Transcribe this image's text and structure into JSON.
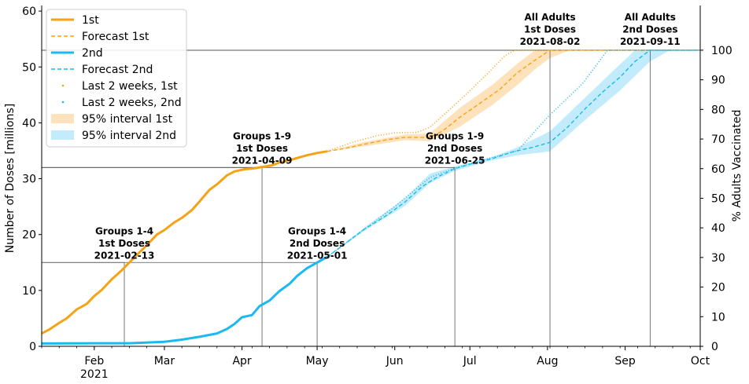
{
  "chart_data": {
    "type": "line",
    "ylabel": "Number of Doses [millions]",
    "ylabel_right": "% Adults Vaccinated",
    "ylim": [
      0,
      61
    ],
    "y_ticks": [
      0,
      10,
      20,
      30,
      40,
      50,
      60
    ],
    "y2_ticks": [
      0,
      10,
      20,
      30,
      40,
      50,
      60,
      70,
      80,
      90,
      100
    ],
    "adults_millions": 53,
    "x_range": [
      "2021-01-11",
      "2021-10-01"
    ],
    "x_ticks": [
      {
        "date": "2021-02-01",
        "label": "Feb",
        "sub": "2021"
      },
      {
        "date": "2021-03-01",
        "label": "Mar",
        "sub": ""
      },
      {
        "date": "2021-04-01",
        "label": "Apr",
        "sub": ""
      },
      {
        "date": "2021-05-01",
        "label": "May",
        "sub": ""
      },
      {
        "date": "2021-06-01",
        "label": "Jun",
        "sub": ""
      },
      {
        "date": "2021-07-01",
        "label": "Jul",
        "sub": ""
      },
      {
        "date": "2021-08-01",
        "label": "Aug",
        "sub": ""
      },
      {
        "date": "2021-09-01",
        "label": "Sep",
        "sub": ""
      },
      {
        "date": "2021-10-01",
        "label": "Oct",
        "sub": ""
      }
    ],
    "legend_position": "top-left",
    "legend": [
      {
        "label": "1st",
        "style": "solid",
        "color": "#f5a316"
      },
      {
        "label": "Forecast 1st",
        "style": "dashed",
        "color": "#f5a316"
      },
      {
        "label": "2nd",
        "style": "solid",
        "color": "#1ab9ef"
      },
      {
        "label": "Forecast 2nd",
        "style": "dashed",
        "color": "#1ab9ef"
      },
      {
        "label": "Last 2 weeks, 1st",
        "style": "dotted",
        "color": "#f5a316"
      },
      {
        "label": "Last 2 weeks, 2nd",
        "style": "dotted",
        "color": "#1ab9ef"
      },
      {
        "label": "95% interval 1st",
        "style": "band",
        "color": "#fde2bb"
      },
      {
        "label": "95% interval 2nd",
        "style": "band",
        "color": "#c2ecfb"
      }
    ],
    "series": [
      {
        "name": "1st",
        "color": "#f5a316",
        "points": [
          [
            "2021-01-11",
            2.3
          ],
          [
            "2021-01-14",
            3.0
          ],
          [
            "2021-01-18",
            4.2
          ],
          [
            "2021-01-21",
            5.0
          ],
          [
            "2021-01-25",
            6.6
          ],
          [
            "2021-01-29",
            7.6
          ],
          [
            "2021-02-01",
            9.0
          ],
          [
            "2021-02-04",
            10.1
          ],
          [
            "2021-02-08",
            12.0
          ],
          [
            "2021-02-12",
            13.6
          ],
          [
            "2021-02-15",
            15.0
          ],
          [
            "2021-02-19",
            16.8
          ],
          [
            "2021-02-22",
            18.1
          ],
          [
            "2021-02-26",
            20.0
          ],
          [
            "2021-03-01",
            20.8
          ],
          [
            "2021-03-05",
            22.2
          ],
          [
            "2021-03-08",
            23.0
          ],
          [
            "2021-03-12",
            24.4
          ],
          [
            "2021-03-15",
            25.9
          ],
          [
            "2021-03-19",
            28.0
          ],
          [
            "2021-03-22",
            29.0
          ],
          [
            "2021-03-26",
            30.6
          ],
          [
            "2021-03-29",
            31.3
          ],
          [
            "2021-04-02",
            31.7
          ],
          [
            "2021-04-05",
            31.8
          ],
          [
            "2021-04-09",
            32.1
          ],
          [
            "2021-04-13",
            32.4
          ],
          [
            "2021-04-16",
            32.9
          ],
          [
            "2021-04-20",
            33.3
          ],
          [
            "2021-04-23",
            33.7
          ],
          [
            "2021-04-27",
            34.2
          ],
          [
            "2021-05-01",
            34.6
          ],
          [
            "2021-05-05",
            34.9
          ]
        ]
      },
      {
        "name": "2nd",
        "color": "#1ab9ef",
        "points": [
          [
            "2021-01-11",
            0.5
          ],
          [
            "2021-02-01",
            0.55
          ],
          [
            "2021-02-15",
            0.55
          ],
          [
            "2021-03-01",
            0.8
          ],
          [
            "2021-03-08",
            1.2
          ],
          [
            "2021-03-15",
            1.7
          ],
          [
            "2021-03-22",
            2.3
          ],
          [
            "2021-03-26",
            3.1
          ],
          [
            "2021-03-29",
            4.0
          ],
          [
            "2021-04-01",
            5.2
          ],
          [
            "2021-04-05",
            5.6
          ],
          [
            "2021-04-08",
            7.2
          ],
          [
            "2021-04-12",
            8.2
          ],
          [
            "2021-04-16",
            9.9
          ],
          [
            "2021-04-20",
            11.2
          ],
          [
            "2021-04-23",
            12.6
          ],
          [
            "2021-04-27",
            14.0
          ],
          [
            "2021-05-01",
            15.0
          ],
          [
            "2021-05-05",
            16.0
          ]
        ]
      },
      {
        "name": "Forecast 1st",
        "color": "#f5a316",
        "points": [
          [
            "2021-05-05",
            34.9
          ],
          [
            "2021-05-12",
            35.4
          ],
          [
            "2021-05-20",
            36.2
          ],
          [
            "2021-05-29",
            37.0
          ],
          [
            "2021-06-05",
            37.4
          ],
          [
            "2021-06-15",
            37.4
          ],
          [
            "2021-06-20",
            38.5
          ],
          [
            "2021-06-27",
            41.0
          ],
          [
            "2021-07-05",
            43.5
          ],
          [
            "2021-07-13",
            46.0
          ],
          [
            "2021-07-20",
            49.0
          ],
          [
            "2021-07-27",
            51.2
          ],
          [
            "2021-08-02",
            53.0
          ],
          [
            "2021-10-01",
            53.0
          ]
        ]
      },
      {
        "name": "Forecast 2nd",
        "color": "#1ab9ef",
        "points": [
          [
            "2021-05-05",
            16.0
          ],
          [
            "2021-05-12",
            18.3
          ],
          [
            "2021-05-20",
            21.0
          ],
          [
            "2021-05-29",
            23.5
          ],
          [
            "2021-06-05",
            25.8
          ],
          [
            "2021-06-12",
            28.6
          ],
          [
            "2021-06-18",
            30.3
          ],
          [
            "2021-06-25",
            31.8
          ],
          [
            "2021-07-02",
            32.7
          ],
          [
            "2021-07-10",
            33.6
          ],
          [
            "2021-07-18",
            34.8
          ],
          [
            "2021-07-26",
            35.6
          ],
          [
            "2021-08-02",
            36.5
          ],
          [
            "2021-08-09",
            39.2
          ],
          [
            "2021-08-16",
            42.5
          ],
          [
            "2021-08-23",
            45.5
          ],
          [
            "2021-08-30",
            48.2
          ],
          [
            "2021-09-05",
            51.0
          ],
          [
            "2021-09-11",
            53.0
          ],
          [
            "2021-10-01",
            53.0
          ]
        ]
      },
      {
        "name": "Last 2 weeks, 1st",
        "color": "#f5a316",
        "points": [
          [
            "2021-05-05",
            34.9
          ],
          [
            "2021-05-15",
            36.5
          ],
          [
            "2021-05-25",
            37.7
          ],
          [
            "2021-06-01",
            38.2
          ],
          [
            "2021-06-10",
            38.3
          ],
          [
            "2021-06-15",
            39.2
          ],
          [
            "2021-06-22",
            42.0
          ],
          [
            "2021-06-30",
            45.3
          ],
          [
            "2021-07-08",
            48.8
          ],
          [
            "2021-07-15",
            52.0
          ],
          [
            "2021-07-19",
            53.0
          ],
          [
            "2021-10-01",
            53.0
          ]
        ]
      },
      {
        "name": "Last 2 weeks, 2nd",
        "color": "#1ab9ef",
        "points": [
          [
            "2021-05-05",
            16.0
          ],
          [
            "2021-05-20",
            21.0
          ],
          [
            "2021-06-01",
            25.0
          ],
          [
            "2021-06-15",
            30.2
          ],
          [
            "2021-06-25",
            31.9
          ],
          [
            "2021-07-10",
            33.8
          ],
          [
            "2021-07-20",
            35.0
          ],
          [
            "2021-08-01",
            41.0
          ],
          [
            "2021-08-15",
            47.0
          ],
          [
            "2021-08-25",
            53.0
          ],
          [
            "2021-10-01",
            53.0
          ]
        ]
      }
    ],
    "bands": [
      {
        "name": "95% interval 1st",
        "color": "#fde2bb",
        "upper": [
          [
            "2021-05-05",
            34.9
          ],
          [
            "2021-05-20",
            36.6
          ],
          [
            "2021-06-05",
            37.9
          ],
          [
            "2021-06-15",
            38.1
          ],
          [
            "2021-06-27",
            42.7
          ],
          [
            "2021-07-10",
            46.8
          ],
          [
            "2021-07-20",
            50.6
          ],
          [
            "2021-07-27",
            53.0
          ],
          [
            "2021-08-02",
            53.0
          ]
        ],
        "lower": [
          [
            "2021-05-05",
            34.9
          ],
          [
            "2021-05-20",
            35.8
          ],
          [
            "2021-06-05",
            36.9
          ],
          [
            "2021-06-15",
            36.7
          ],
          [
            "2021-06-27",
            39.3
          ],
          [
            "2021-07-10",
            43.2
          ],
          [
            "2021-07-20",
            46.8
          ],
          [
            "2021-07-27",
            49.6
          ],
          [
            "2021-08-02",
            51.6
          ],
          [
            "2021-08-10",
            53.0
          ]
        ]
      },
      {
        "name": "95% interval 2nd",
        "color": "#c2ecfb",
        "upper": [
          [
            "2021-05-05",
            16.0
          ],
          [
            "2021-05-20",
            21.3
          ],
          [
            "2021-06-05",
            26.5
          ],
          [
            "2021-06-15",
            30.9
          ],
          [
            "2021-06-25",
            32.2
          ],
          [
            "2021-07-10",
            33.9
          ],
          [
            "2021-07-20",
            35.6
          ],
          [
            "2021-08-02",
            38.5
          ],
          [
            "2021-08-16",
            44.5
          ],
          [
            "2021-08-30",
            50.5
          ],
          [
            "2021-09-05",
            53.0
          ],
          [
            "2021-09-11",
            53.0
          ]
        ],
        "lower": [
          [
            "2021-05-05",
            16.0
          ],
          [
            "2021-05-20",
            20.7
          ],
          [
            "2021-06-05",
            25.1
          ],
          [
            "2021-06-15",
            29.2
          ],
          [
            "2021-06-25",
            31.4
          ],
          [
            "2021-07-10",
            33.3
          ],
          [
            "2021-07-20",
            34.2
          ],
          [
            "2021-08-02",
            34.9
          ],
          [
            "2021-08-16",
            40.5
          ],
          [
            "2021-08-30",
            45.8
          ],
          [
            "2021-09-11",
            51.0
          ],
          [
            "2021-09-19",
            53.0
          ]
        ]
      }
    ],
    "milestones": [
      {
        "date": "2021-02-13",
        "y": 15,
        "lines": [
          "Groups 1-4",
          "1st Doses",
          "2021-02-13"
        ],
        "placement": "center"
      },
      {
        "date": "2021-04-09",
        "y": 32,
        "lines": [
          "Groups 1-9",
          "1st Doses",
          "2021-04-09"
        ],
        "placement": "center"
      },
      {
        "date": "2021-05-01",
        "y": 15,
        "lines": [
          "Groups 1-4",
          "2nd Doses",
          "2021-05-01"
        ],
        "placement": "center"
      },
      {
        "date": "2021-06-25",
        "y": 32,
        "lines": [
          "Groups 1-9",
          "2nd Doses",
          "2021-06-25"
        ],
        "placement": "center"
      },
      {
        "date": "2021-08-02",
        "y": 53,
        "lines": [
          "All Adults",
          "1st Doses",
          "2021-08-02"
        ],
        "placement": "top"
      },
      {
        "date": "2021-09-11",
        "y": 53,
        "lines": [
          "All Adults",
          "2nd Doses",
          "2021-09-11"
        ],
        "placement": "top"
      }
    ]
  }
}
